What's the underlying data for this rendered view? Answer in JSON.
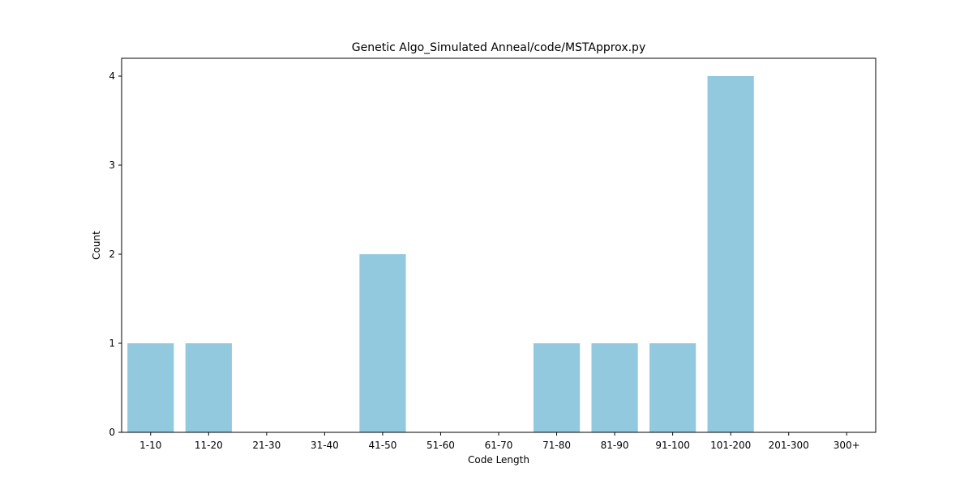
{
  "chart_data": {
    "type": "bar",
    "title": "Genetic Algo_Simulated Anneal/code/MSTApprox.py",
    "xlabel": "Code Length",
    "ylabel": "Count",
    "categories": [
      "1-10",
      "11-20",
      "21-30",
      "31-40",
      "41-50",
      "51-60",
      "61-70",
      "71-80",
      "81-90",
      "91-100",
      "101-200",
      "201-300",
      "300+"
    ],
    "values": [
      1,
      1,
      0,
      0,
      2,
      0,
      0,
      1,
      1,
      1,
      4,
      0,
      0
    ],
    "ylim": [
      0,
      4.2
    ],
    "yticks": [
      0,
      1,
      2,
      3,
      4
    ],
    "bar_color": "#92c9de",
    "grid": false,
    "legend": "none"
  }
}
